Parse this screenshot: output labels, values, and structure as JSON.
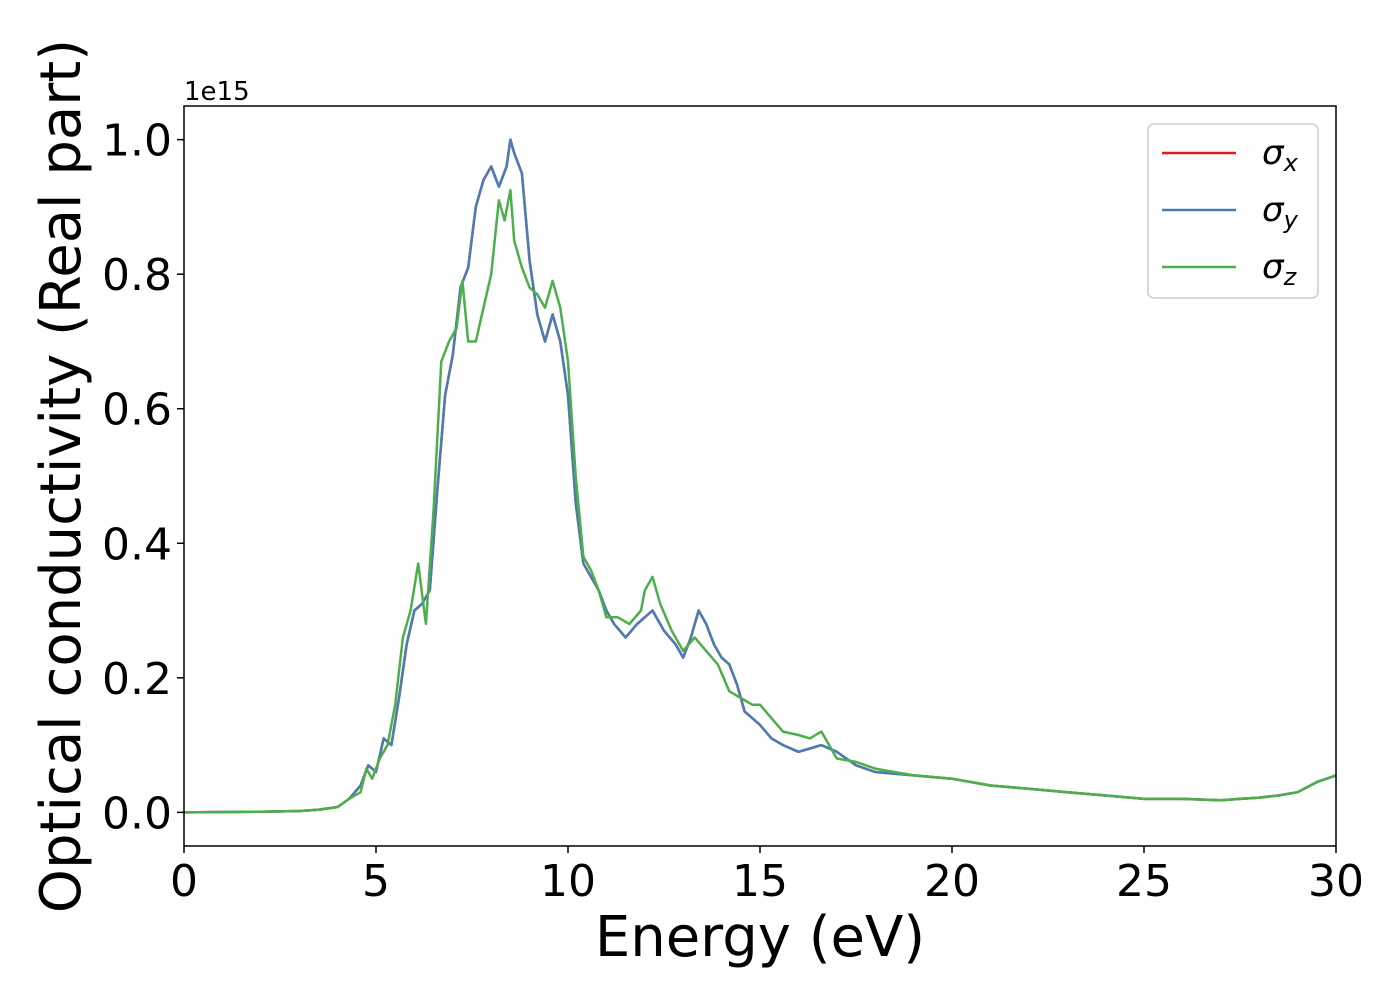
{
  "chart_data": {
    "type": "line",
    "xlabel": "Energy (eV)",
    "ylabel": "Optical conductivity (Real part)",
    "offset_text": "1e15",
    "xlim": [
      0,
      30
    ],
    "ylim": [
      -0.05,
      1.05
    ],
    "xticks": [
      0,
      5,
      10,
      15,
      20,
      25,
      30
    ],
    "xtick_labels": [
      "0",
      "5",
      "10",
      "15",
      "20",
      "25",
      "30"
    ],
    "yticks": [
      0.0,
      0.2,
      0.4,
      0.6,
      0.8,
      1.0
    ],
    "ytick_labels": [
      "0.0",
      "0.2",
      "0.4",
      "0.6",
      "0.8",
      "1.0"
    ],
    "grid": false,
    "legend_position": "top-right",
    "series": [
      {
        "name": "σx",
        "symbol": "σ",
        "subscript": "x",
        "color": "#e41a1c",
        "x": [
          0,
          2,
          3,
          3.5,
          4,
          4.3,
          4.6,
          4.8,
          5.0,
          5.2,
          5.4,
          5.6,
          5.8,
          6.0,
          6.2,
          6.4,
          6.6,
          6.8,
          7.0,
          7.2,
          7.4,
          7.6,
          7.8,
          8.0,
          8.2,
          8.4,
          8.5,
          8.6,
          8.8,
          9.0,
          9.2,
          9.4,
          9.6,
          9.8,
          10.0,
          10.2,
          10.4,
          10.6,
          10.8,
          11.0,
          11.2,
          11.5,
          11.8,
          12.0,
          12.2,
          12.5,
          12.8,
          13.0,
          13.2,
          13.4,
          13.6,
          13.8,
          14.0,
          14.2,
          14.4,
          14.6,
          14.8,
          15.0,
          15.3,
          15.6,
          16.0,
          16.3,
          16.6,
          17.0,
          17.5,
          18,
          19,
          20,
          21,
          22,
          23,
          24,
          25,
          26,
          27,
          27.5,
          28,
          28.5,
          29,
          29.5,
          30
        ],
        "values": [
          0,
          0.001,
          0.002,
          0.004,
          0.008,
          0.02,
          0.04,
          0.07,
          0.06,
          0.11,
          0.1,
          0.17,
          0.25,
          0.3,
          0.31,
          0.33,
          0.48,
          0.62,
          0.68,
          0.78,
          0.81,
          0.9,
          0.94,
          0.96,
          0.93,
          0.96,
          1.0,
          0.98,
          0.95,
          0.82,
          0.74,
          0.7,
          0.74,
          0.7,
          0.62,
          0.46,
          0.37,
          0.35,
          0.33,
          0.3,
          0.28,
          0.26,
          0.28,
          0.29,
          0.3,
          0.27,
          0.25,
          0.23,
          0.26,
          0.3,
          0.28,
          0.25,
          0.23,
          0.22,
          0.19,
          0.15,
          0.14,
          0.13,
          0.11,
          0.1,
          0.09,
          0.095,
          0.1,
          0.09,
          0.07,
          0.06,
          0.055,
          0.05,
          0.04,
          0.035,
          0.03,
          0.025,
          0.02,
          0.02,
          0.018,
          0.02,
          0.022,
          0.025,
          0.03,
          0.045,
          0.055
        ]
      },
      {
        "name": "σy",
        "symbol": "σ",
        "subscript": "y",
        "color": "#4a7db5",
        "x": [
          0,
          2,
          3,
          3.5,
          4,
          4.3,
          4.6,
          4.8,
          5.0,
          5.2,
          5.4,
          5.6,
          5.8,
          6.0,
          6.2,
          6.4,
          6.6,
          6.8,
          7.0,
          7.2,
          7.4,
          7.6,
          7.8,
          8.0,
          8.2,
          8.4,
          8.5,
          8.6,
          8.8,
          9.0,
          9.2,
          9.4,
          9.6,
          9.8,
          10.0,
          10.2,
          10.4,
          10.6,
          10.8,
          11.0,
          11.2,
          11.5,
          11.8,
          12.0,
          12.2,
          12.5,
          12.8,
          13.0,
          13.2,
          13.4,
          13.6,
          13.8,
          14.0,
          14.2,
          14.4,
          14.6,
          14.8,
          15.0,
          15.3,
          15.6,
          16.0,
          16.3,
          16.6,
          17.0,
          17.5,
          18,
          19,
          20,
          21,
          22,
          23,
          24,
          25,
          26,
          27,
          27.5,
          28,
          28.5,
          29,
          29.5,
          30
        ],
        "values": [
          0,
          0.001,
          0.002,
          0.004,
          0.008,
          0.02,
          0.04,
          0.07,
          0.06,
          0.11,
          0.1,
          0.17,
          0.25,
          0.3,
          0.31,
          0.33,
          0.48,
          0.62,
          0.68,
          0.78,
          0.81,
          0.9,
          0.94,
          0.96,
          0.93,
          0.96,
          1.0,
          0.98,
          0.95,
          0.82,
          0.74,
          0.7,
          0.74,
          0.7,
          0.62,
          0.46,
          0.37,
          0.35,
          0.33,
          0.3,
          0.28,
          0.26,
          0.28,
          0.29,
          0.3,
          0.27,
          0.25,
          0.23,
          0.26,
          0.3,
          0.28,
          0.25,
          0.23,
          0.22,
          0.19,
          0.15,
          0.14,
          0.13,
          0.11,
          0.1,
          0.09,
          0.095,
          0.1,
          0.09,
          0.07,
          0.06,
          0.055,
          0.05,
          0.04,
          0.035,
          0.03,
          0.025,
          0.02,
          0.02,
          0.018,
          0.02,
          0.022,
          0.025,
          0.03,
          0.045,
          0.055
        ]
      },
      {
        "name": "σz",
        "symbol": "σ",
        "subscript": "z",
        "color": "#4daf4a",
        "x": [
          0,
          2,
          3,
          3.5,
          4,
          4.3,
          4.6,
          4.75,
          4.9,
          5.1,
          5.3,
          5.5,
          5.7,
          5.9,
          6.1,
          6.3,
          6.5,
          6.7,
          6.9,
          7.1,
          7.25,
          7.4,
          7.6,
          7.8,
          8.0,
          8.2,
          8.35,
          8.5,
          8.6,
          8.8,
          9.0,
          9.2,
          9.4,
          9.6,
          9.8,
          10.0,
          10.2,
          10.4,
          10.6,
          10.8,
          11.0,
          11.3,
          11.6,
          11.9,
          12.0,
          12.2,
          12.4,
          12.7,
          13.0,
          13.3,
          13.6,
          13.9,
          14.2,
          14.5,
          14.8,
          15.0,
          15.3,
          15.6,
          16.0,
          16.3,
          16.6,
          17.0,
          17.5,
          18,
          19,
          20,
          21,
          22,
          23,
          24,
          25,
          26,
          27,
          27.5,
          28,
          28.5,
          29,
          29.5,
          30
        ],
        "values": [
          0,
          0.001,
          0.002,
          0.004,
          0.008,
          0.02,
          0.03,
          0.065,
          0.05,
          0.08,
          0.1,
          0.16,
          0.26,
          0.3,
          0.37,
          0.28,
          0.45,
          0.67,
          0.7,
          0.72,
          0.79,
          0.7,
          0.7,
          0.75,
          0.8,
          0.91,
          0.88,
          0.925,
          0.85,
          0.81,
          0.78,
          0.77,
          0.75,
          0.79,
          0.75,
          0.67,
          0.5,
          0.38,
          0.36,
          0.33,
          0.29,
          0.29,
          0.28,
          0.3,
          0.33,
          0.35,
          0.31,
          0.27,
          0.24,
          0.26,
          0.24,
          0.22,
          0.18,
          0.17,
          0.16,
          0.16,
          0.14,
          0.12,
          0.115,
          0.11,
          0.12,
          0.08,
          0.075,
          0.065,
          0.055,
          0.05,
          0.04,
          0.035,
          0.03,
          0.025,
          0.02,
          0.02,
          0.018,
          0.02,
          0.022,
          0.025,
          0.03,
          0.045,
          0.055
        ]
      }
    ]
  }
}
